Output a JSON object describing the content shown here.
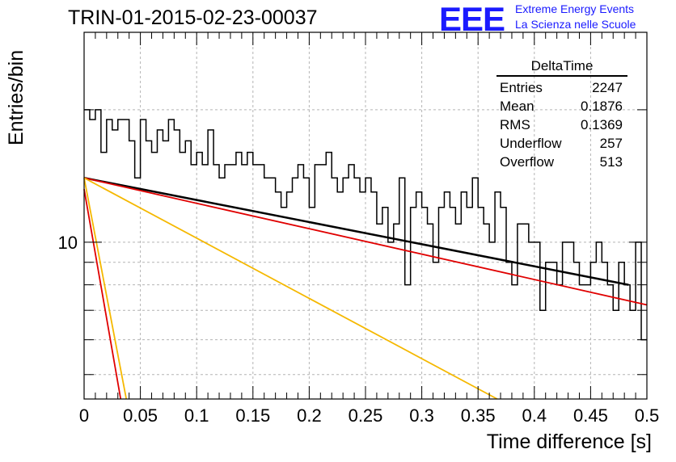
{
  "title": "TRIN-01-2015-02-23-00037",
  "logo": {
    "letters": "EEE",
    "line1": "Extreme Energy Events",
    "line2": "La Scienza nelle Scuole",
    "color": "#1a1aff"
  },
  "stats": {
    "name": "DeltaTime",
    "rows": [
      {
        "label": "Entries",
        "value": "2247"
      },
      {
        "label": "Mean",
        "value": "0.1876"
      },
      {
        "label": "RMS",
        "value": "0.1369"
      },
      {
        "label": "Underflow",
        "value": "257"
      },
      {
        "label": "Overflow",
        "value": "513"
      }
    ]
  },
  "chart_data": {
    "type": "histogram",
    "xlabel": "Time difference [s]",
    "ylabel": "Entries/bin",
    "xlim": [
      0,
      0.5
    ],
    "ylim": [
      4.4,
      30
    ],
    "yscale": "log",
    "grid": true,
    "xticks": [
      "0",
      "0.05",
      "0.1",
      "0.15",
      "0.2",
      "0.25",
      "0.3",
      "0.35",
      "0.4",
      "0.45",
      "0.5"
    ],
    "yticks": [
      "10"
    ],
    "bin_width": 0.005,
    "counts": [
      20,
      19,
      20,
      16,
      19,
      18,
      19,
      19,
      17,
      14,
      19,
      17,
      16,
      18,
      17,
      19,
      18,
      16,
      17,
      15,
      16,
      15,
      18,
      15,
      14,
      15,
      15,
      16,
      15,
      16,
      15,
      15,
      14,
      14,
      13,
      12,
      13,
      14,
      15,
      14,
      12,
      15,
      15,
      16,
      14,
      13,
      14,
      15,
      14,
      13,
      14,
      13,
      11,
      12,
      10,
      11,
      14,
      8,
      12,
      13,
      12,
      11,
      9,
      12,
      13,
      12,
      11,
      13,
      12,
      14,
      12,
      11,
      10,
      13,
      12,
      9,
      8,
      11,
      11,
      10,
      10,
      7,
      9,
      9,
      8,
      10,
      10,
      9,
      8,
      8,
      9,
      10,
      9,
      8,
      7,
      9,
      8,
      7,
      10,
      6
    ],
    "fits": [
      {
        "color": "#000000",
        "x": [
          0,
          0.4837
        ],
        "y": [
          14.0,
          8.0
        ]
      },
      {
        "color": "#e00000",
        "x": [
          0,
          0.5
        ],
        "y": [
          14.0,
          7.2
        ]
      },
      {
        "color": "#f5b800",
        "x": [
          0,
          0.367
        ],
        "y": [
          14.0,
          4.4
        ]
      },
      {
        "color": "#e00000",
        "x": [
          0,
          0.0325
        ],
        "y": [
          13.2,
          4.4
        ]
      },
      {
        "color": "#f5b800",
        "x": [
          0,
          0.0375
        ],
        "y": [
          14.0,
          4.4
        ]
      }
    ]
  }
}
